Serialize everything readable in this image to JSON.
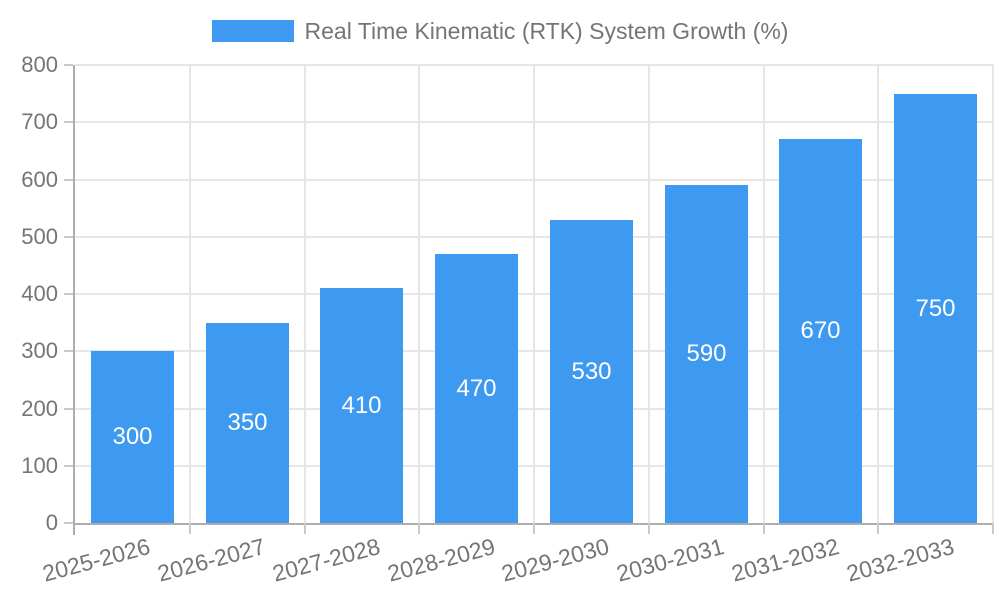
{
  "chart_data": {
    "type": "bar",
    "title": "Real Time Kinematic (RTK) System Growth (%)",
    "categories": [
      "2025-2026",
      "2026-2027",
      "2027-2028",
      "2028-2029",
      "2029-2030",
      "2030-2031",
      "2031-2032",
      "2032-2033"
    ],
    "values": [
      300,
      350,
      410,
      470,
      530,
      590,
      670,
      750
    ],
    "bar_value_labels": [
      "300",
      "350",
      "410",
      "470",
      "530",
      "590",
      "670",
      "750"
    ],
    "xlabel": "",
    "ylabel": "",
    "ylim": [
      0,
      800
    ],
    "yticks": [
      0,
      100,
      200,
      300,
      400,
      500,
      600,
      700,
      800
    ],
    "grid": "both",
    "legend_position": "top-center",
    "x_label_rotation_deg": -15,
    "colors": {
      "bar": "#3D9AF0",
      "bar_label_text": "#FFFFFF",
      "axis_text": "#757575",
      "legend_text": "#757575",
      "gridline": "#E6E6E6",
      "axis_line": "#ADADAD",
      "tick": "#C9C9C9",
      "background": "#FFFFFF"
    }
  }
}
